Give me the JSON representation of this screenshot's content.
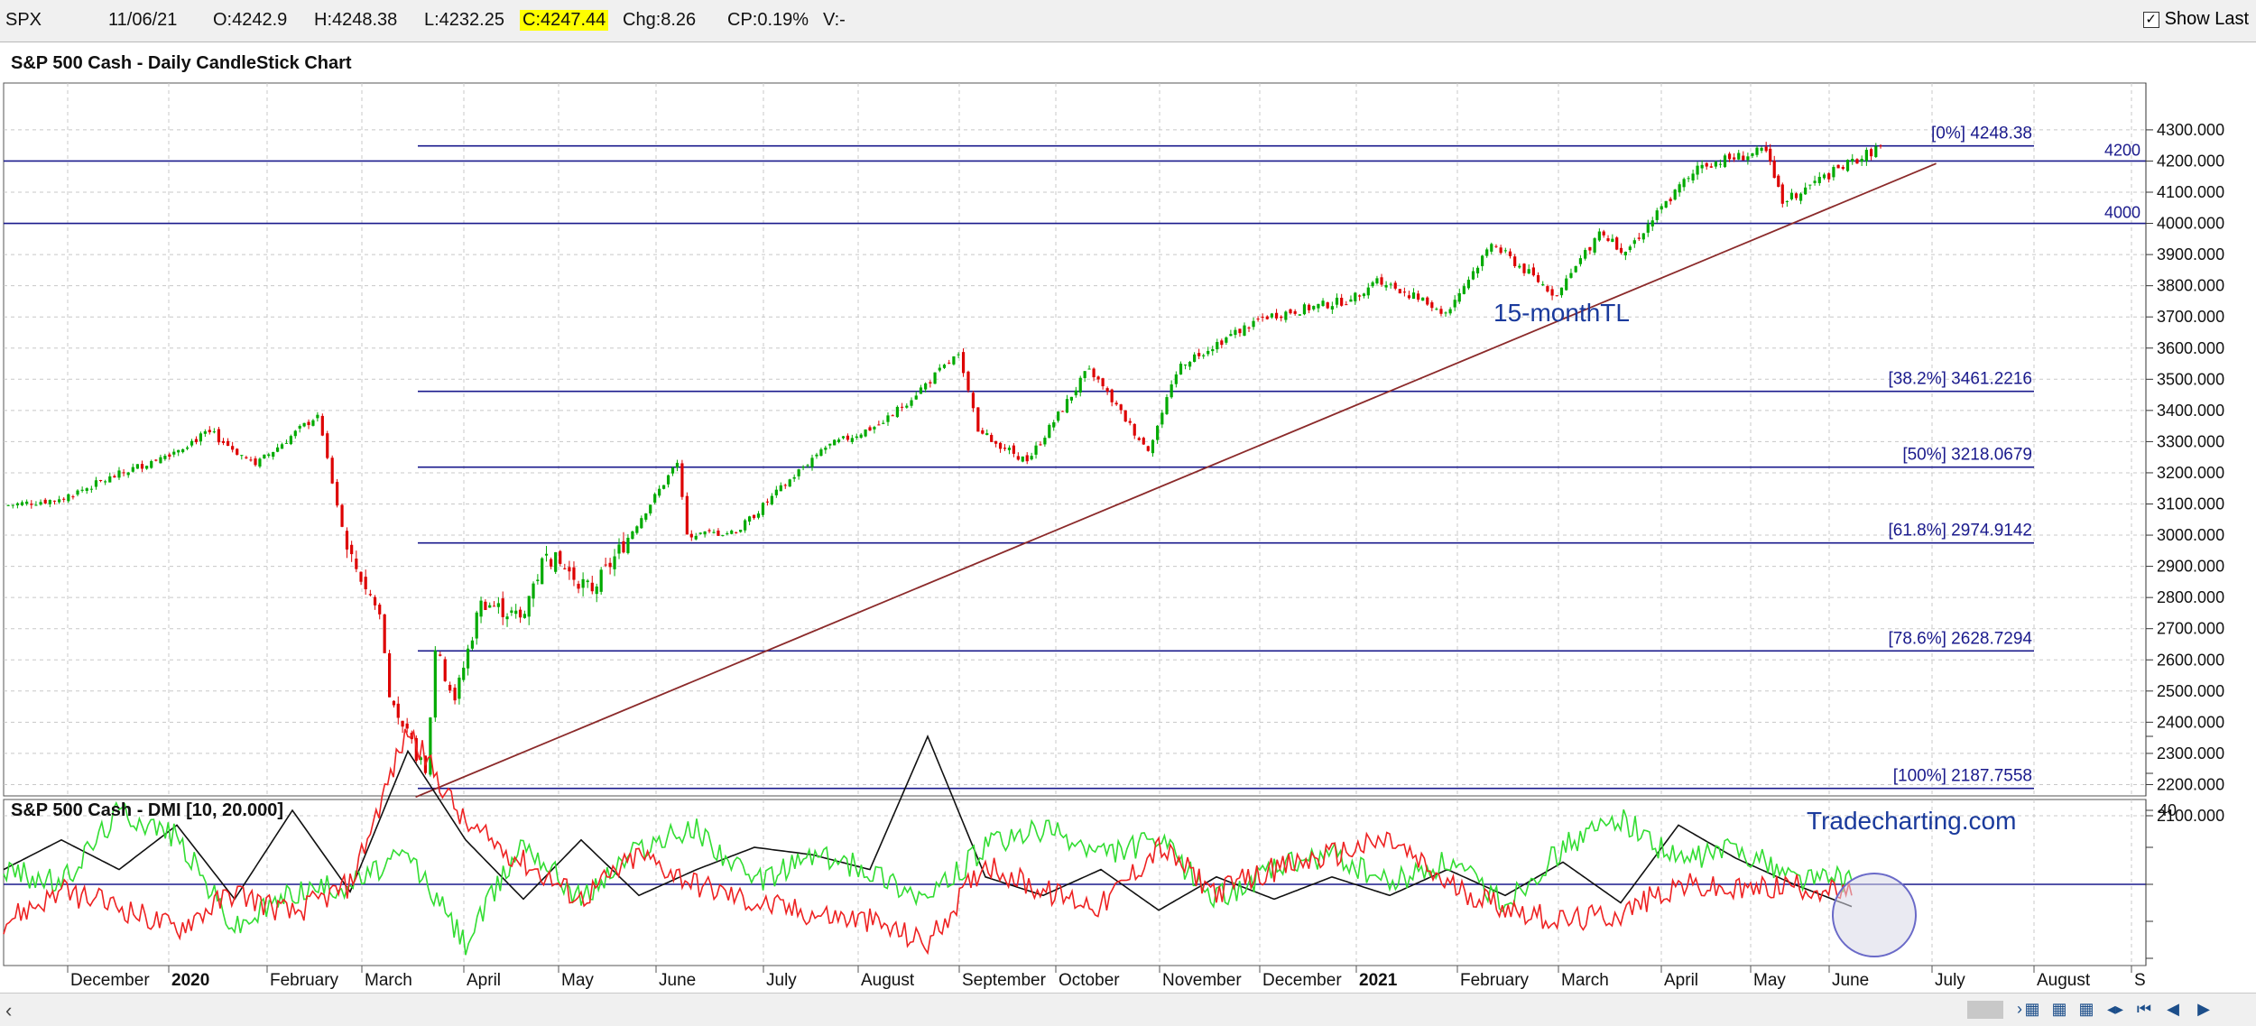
{
  "toolbar": {
    "symbol": "SPX",
    "date": "11/06/21",
    "open": "O:4242.9",
    "high": "H:4248.38",
    "low": "L:4232.25",
    "close": "C:4247.44",
    "change": "Chg:8.26",
    "change_pct": "CP:0.19%",
    "volume": "V:-",
    "show_last_label": "Show Last"
  },
  "colors": {
    "up": "#00aa00",
    "down": "#dd0000",
    "fib_line": "#1a1a8c",
    "trendline": "#8b2a2a",
    "plus_di": "#33dd33",
    "minus_di": "#ee2222",
    "adx": "#111111",
    "grid": "#c8c8c8"
  },
  "chart_data": [
    {
      "type": "candlestick",
      "title": "S&P 500 Cash - Daily CandleStick Chart",
      "ylim": [
        2100,
        4300
      ],
      "y_ticks": [
        "4300.000",
        "4200.000",
        "4100.000",
        "4000.000",
        "3900.000",
        "3800.000",
        "3700.000",
        "3600.000",
        "3500.000",
        "3400.000",
        "3300.000",
        "3200.000",
        "3100.000",
        "3000.000",
        "2900.000",
        "2800.000",
        "2700.000",
        "2600.000",
        "2500.000",
        "2400.000",
        "2300.000",
        "2200.000",
        "2100.000"
      ],
      "x_labels": [
        "December",
        "2020",
        "February",
        "March",
        "April",
        "May",
        "June",
        "July",
        "August",
        "September",
        "October",
        "November",
        "December",
        "2021",
        "February",
        "March",
        "April",
        "May",
        "June",
        "July",
        "August",
        "S"
      ],
      "anchors": [
        {
          "date": "2019-11-15",
          "close": 3095
        },
        {
          "date": "2019-12-02",
          "close": 3115
        },
        {
          "date": "2020-01-02",
          "close": 3250
        },
        {
          "date": "2020-01-17",
          "close": 3330
        },
        {
          "date": "2020-01-31",
          "close": 3225
        },
        {
          "date": "2020-02-19",
          "close": 3386
        },
        {
          "date": "2020-02-28",
          "close": 2954
        },
        {
          "date": "2020-03-09",
          "close": 2746
        },
        {
          "date": "2020-03-12",
          "close": 2480
        },
        {
          "date": "2020-03-16",
          "close": 2386
        },
        {
          "date": "2020-03-23",
          "close": 2237
        },
        {
          "date": "2020-03-26",
          "close": 2630
        },
        {
          "date": "2020-04-01",
          "close": 2470
        },
        {
          "date": "2020-04-09",
          "close": 2790
        },
        {
          "date": "2020-04-21",
          "close": 2736
        },
        {
          "date": "2020-04-29",
          "close": 2940
        },
        {
          "date": "2020-05-13",
          "close": 2820
        },
        {
          "date": "2020-06-08",
          "close": 3232
        },
        {
          "date": "2020-06-11",
          "close": 3002
        },
        {
          "date": "2020-06-26",
          "close": 3009
        },
        {
          "date": "2020-07-22",
          "close": 3275
        },
        {
          "date": "2020-08-10",
          "close": 3360
        },
        {
          "date": "2020-09-02",
          "close": 3580
        },
        {
          "date": "2020-09-08",
          "close": 3332
        },
        {
          "date": "2020-09-23",
          "close": 3237
        },
        {
          "date": "2020-10-12",
          "close": 3534
        },
        {
          "date": "2020-10-30",
          "close": 3270
        },
        {
          "date": "2020-11-09",
          "close": 3550
        },
        {
          "date": "2020-12-04",
          "close": 3699
        },
        {
          "date": "2020-12-31",
          "close": 3756
        },
        {
          "date": "2021-01-08",
          "close": 3824
        },
        {
          "date": "2021-01-29",
          "close": 3714
        },
        {
          "date": "2021-02-12",
          "close": 3934
        },
        {
          "date": "2021-03-04",
          "close": 3768
        },
        {
          "date": "2021-03-17",
          "close": 3974
        },
        {
          "date": "2021-03-25",
          "close": 3909
        },
        {
          "date": "2021-04-16",
          "close": 4185
        },
        {
          "date": "2021-05-07",
          "close": 4232
        },
        {
          "date": "2021-05-12",
          "close": 4063
        },
        {
          "date": "2021-05-19",
          "close": 4115
        },
        {
          "date": "2021-06-11",
          "close": 4247
        }
      ],
      "fib_levels": [
        {
          "label": "[0%] 4248.38",
          "value": 4248.38
        },
        {
          "label": "[38.2%] 3461.2216",
          "value": 3461.2216
        },
        {
          "label": "[50%] 3218.0679",
          "value": 3218.0679
        },
        {
          "label": "[61.8%] 2974.9142",
          "value": 2974.9142
        },
        {
          "label": "[78.6%] 2628.7294",
          "value": 2628.7294
        },
        {
          "label": "[100%] 2187.7558",
          "value": 2187.7558
        }
      ],
      "horizontal_lines": [
        {
          "label": "4200",
          "value": 4200
        },
        {
          "label": "4000",
          "value": 4000
        }
      ],
      "trendline": {
        "label": "15-monthTL",
        "start": {
          "date": "2020-03-20",
          "value": 2160
        },
        "end": {
          "date": "2021-06-28",
          "value": 4192
        }
      }
    },
    {
      "type": "line",
      "title": "S&P 500 Cash - DMI [10, 20.000]",
      "watermark": "Tradecharting.com",
      "ylim": [
        0,
        60
      ],
      "y_tick_label": "40",
      "reference_line": 20,
      "series": [
        {
          "key": "adx",
          "anchors": [
            [
              0,
              24
            ],
            [
              20,
              32
            ],
            [
              40,
              24
            ],
            [
              60,
              36
            ],
            [
              80,
              16
            ],
            [
              100,
              40
            ],
            [
              120,
              18
            ],
            [
              140,
              56
            ],
            [
              160,
              32
            ],
            [
              180,
              16
            ],
            [
              200,
              32
            ],
            [
              220,
              17
            ],
            [
              240,
              24
            ],
            [
              260,
              30
            ],
            [
              280,
              28
            ],
            [
              300,
              24
            ],
            [
              320,
              60
            ],
            [
              340,
              22
            ],
            [
              360,
              17
            ],
            [
              380,
              24
            ],
            [
              400,
              13
            ],
            [
              420,
              22
            ],
            [
              440,
              16
            ],
            [
              460,
              22
            ],
            [
              480,
              17
            ],
            [
              500,
              24
            ],
            [
              520,
              17
            ],
            [
              540,
              26
            ],
            [
              560,
              15
            ],
            [
              580,
              36
            ],
            [
              600,
              27
            ],
            [
              620,
              20
            ],
            [
              640,
              14
            ]
          ]
        },
        {
          "key": "plus_di",
          "anchors": [
            [
              0,
              24
            ],
            [
              20,
              20
            ],
            [
              40,
              40
            ],
            [
              60,
              33
            ],
            [
              80,
              8
            ],
            [
              100,
              18
            ],
            [
              120,
              20
            ],
            [
              140,
              28
            ],
            [
              160,
              4
            ],
            [
              180,
              32
            ],
            [
              200,
              16
            ],
            [
              220,
              30
            ],
            [
              240,
              35
            ],
            [
              260,
              20
            ],
            [
              280,
              28
            ],
            [
              300,
              24
            ],
            [
              320,
              16
            ],
            [
              340,
              30
            ],
            [
              360,
              35
            ],
            [
              380,
              28
            ],
            [
              400,
              32
            ],
            [
              420,
              16
            ],
            [
              440,
              24
            ],
            [
              460,
              28
            ],
            [
              480,
              20
            ],
            [
              500,
              26
            ],
            [
              520,
              15
            ],
            [
              540,
              30
            ],
            [
              560,
              38
            ],
            [
              580,
              26
            ],
            [
              600,
              30
            ],
            [
              620,
              22
            ],
            [
              640,
              21
            ]
          ]
        },
        {
          "key": "minus_di",
          "anchors": [
            [
              0,
              10
            ],
            [
              20,
              18
            ],
            [
              40,
              14
            ],
            [
              60,
              8
            ],
            [
              80,
              18
            ],
            [
              100,
              12
            ],
            [
              120,
              20
            ],
            [
              140,
              62
            ],
            [
              160,
              36
            ],
            [
              180,
              26
            ],
            [
              200,
              16
            ],
            [
              220,
              28
            ],
            [
              240,
              20
            ],
            [
              260,
              15
            ],
            [
              280,
              12
            ],
            [
              300,
              10
            ],
            [
              320,
              4
            ],
            [
              340,
              26
            ],
            [
              360,
              18
            ],
            [
              380,
              14
            ],
            [
              400,
              30
            ],
            [
              420,
              18
            ],
            [
              440,
              24
            ],
            [
              460,
              28
            ],
            [
              480,
              32
            ],
            [
              500,
              20
            ],
            [
              520,
              14
            ],
            [
              540,
              10
            ],
            [
              560,
              12
            ],
            [
              580,
              20
            ],
            [
              600,
              18
            ],
            [
              620,
              20
            ],
            [
              640,
              17
            ]
          ]
        }
      ]
    }
  ]
}
